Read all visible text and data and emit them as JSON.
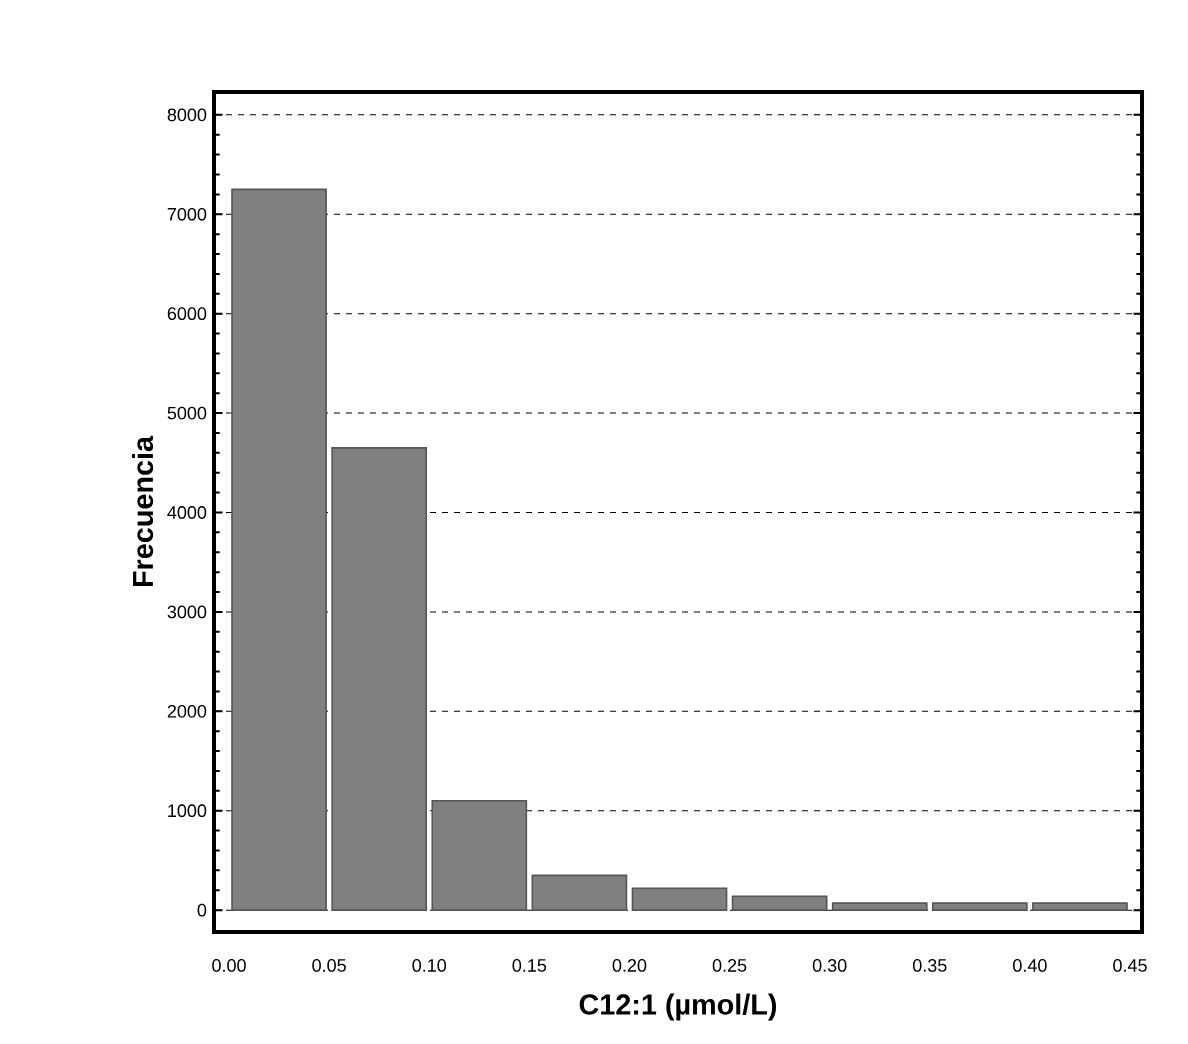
{
  "chart_data": {
    "type": "histogram",
    "xlabel": "C12:1 (µmol/L)",
    "ylabel": "Frecuencia",
    "bins": [
      0.0,
      0.05,
      0.1,
      0.15,
      0.2,
      0.25,
      0.3,
      0.35,
      0.4,
      0.45
    ],
    "values": [
      7250,
      4650,
      1100,
      350,
      220,
      140,
      70,
      70,
      70
    ],
    "color": "#808080",
    "xlim": [
      -0.0075,
      0.456
    ],
    "ylim": [
      -220,
      8230
    ],
    "xticks": [
      {
        "value": 0.0,
        "label": "0.00"
      },
      {
        "value": 0.05,
        "label": "0.05"
      },
      {
        "value": 0.1,
        "label": "0.10"
      },
      {
        "value": 0.15,
        "label": "0.15"
      },
      {
        "value": 0.2,
        "label": "0.20"
      },
      {
        "value": 0.25,
        "label": "0.25"
      },
      {
        "value": 0.3,
        "label": "0.30"
      },
      {
        "value": 0.35,
        "label": "0.35"
      },
      {
        "value": 0.4,
        "label": "0.40"
      },
      {
        "value": 0.45,
        "label": "0.45"
      }
    ],
    "yticks": [
      0,
      1000,
      2000,
      3000,
      4000,
      5000,
      6000,
      7000,
      8000
    ],
    "grid": "y"
  }
}
